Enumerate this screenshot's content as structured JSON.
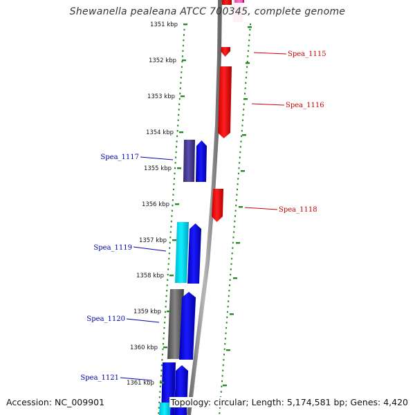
{
  "title": "Shewanella pealeana ATCC 700345, complete genome",
  "footer": {
    "accession": "Accession: NC_009901",
    "info": "Topology: circular; Length: 5,174,581 bp; Genes: 4,420"
  },
  "colors": {
    "forward": "#0000ee",
    "reverse": "#ee0000",
    "backbone": "#888888",
    "tick": "#228822",
    "forward_label": "#0000aa",
    "reverse_label": "#cc0000",
    "tick_label": "#111111"
  },
  "scale_ticks": [
    "1351 kbp",
    "1352 kbp",
    "1353 kbp",
    "1354 kbp",
    "1355 kbp",
    "1356 kbp",
    "1357 kbp",
    "1358 kbp",
    "1359 kbp",
    "1360 kbp",
    "1361 kbp"
  ],
  "genes": [
    {
      "label": "Spea_1115",
      "strand": "reverse"
    },
    {
      "label": "Spea_1116",
      "strand": "reverse"
    },
    {
      "label": "Spea_1117",
      "strand": "forward"
    },
    {
      "label": "Spea_1118",
      "strand": "reverse"
    },
    {
      "label": "Spea_1119",
      "strand": "forward"
    },
    {
      "label": "Spea_1120",
      "strand": "forward"
    },
    {
      "label": "Spea_1121",
      "strand": "forward"
    }
  ]
}
